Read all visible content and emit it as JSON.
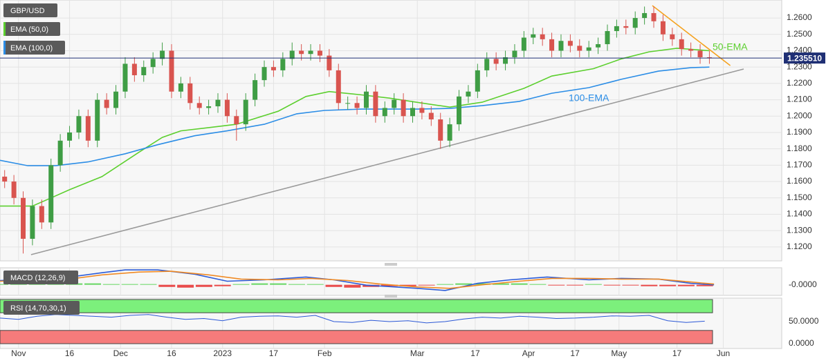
{
  "chart_data": [
    {
      "type": "candlestick",
      "symbol": "GBP/USD",
      "up_color": "#3f9d45",
      "down_color": "#d9544f",
      "x": [
        1,
        3,
        5,
        7,
        9,
        11,
        13,
        15,
        17,
        19,
        21,
        23,
        25,
        27,
        29,
        31,
        33,
        35,
        37,
        39,
        41,
        43,
        45,
        47,
        49,
        51,
        53,
        55,
        57,
        59,
        61,
        63,
        65,
        67,
        69,
        71,
        73,
        75,
        77,
        79,
        81,
        83,
        85,
        87,
        89,
        91,
        93,
        95,
        97,
        99,
        101,
        103,
        105,
        107,
        109,
        111,
        113,
        115,
        117,
        119,
        121,
        123,
        125,
        127,
        129,
        131,
        133,
        135,
        137,
        139,
        141,
        143,
        145,
        147,
        149,
        151,
        153
      ],
      "open": [
        1.163,
        1.16,
        1.15,
        1.125,
        1.145,
        1.135,
        1.17,
        1.185,
        1.19,
        1.2,
        1.185,
        1.21,
        1.205,
        1.215,
        1.232,
        1.225,
        1.23,
        1.235,
        1.24,
        1.215,
        1.22,
        1.208,
        1.205,
        1.206,
        1.21,
        1.2,
        1.195,
        1.21,
        1.222,
        1.23,
        1.228,
        1.235,
        1.24,
        1.238,
        1.24,
        1.237,
        1.228,
        1.208,
        1.208,
        1.205,
        1.215,
        1.2,
        1.205,
        1.21,
        1.2,
        1.205,
        1.202,
        1.198,
        1.185,
        1.195,
        1.212,
        1.215,
        1.228,
        1.235,
        1.232,
        1.236,
        1.24,
        1.248,
        1.25,
        1.247,
        1.24,
        1.246,
        1.243,
        1.24,
        1.242,
        1.244,
        1.252,
        1.255,
        1.254,
        1.26,
        1.263,
        1.258,
        1.25,
        1.247,
        1.241,
        1.24,
        1.236
      ],
      "high": [
        1.167,
        1.164,
        1.154,
        1.149,
        1.149,
        1.174,
        1.189,
        1.194,
        1.204,
        1.204,
        1.214,
        1.214,
        1.219,
        1.236,
        1.236,
        1.234,
        1.239,
        1.245,
        1.244,
        1.224,
        1.224,
        1.212,
        1.21,
        1.214,
        1.214,
        1.204,
        1.214,
        1.226,
        1.234,
        1.234,
        1.239,
        1.245,
        1.244,
        1.244,
        1.244,
        1.241,
        1.232,
        1.212,
        1.212,
        1.219,
        1.219,
        1.209,
        1.214,
        1.214,
        1.209,
        1.209,
        1.206,
        1.202,
        1.199,
        1.216,
        1.219,
        1.232,
        1.239,
        1.239,
        1.24,
        1.244,
        1.252,
        1.254,
        1.254,
        1.251,
        1.25,
        1.25,
        1.247,
        1.246,
        1.248,
        1.256,
        1.259,
        1.259,
        1.264,
        1.267,
        1.267,
        1.262,
        1.254,
        1.251,
        1.245,
        1.244,
        1.24
      ],
      "low": [
        1.156,
        1.146,
        1.116,
        1.121,
        1.131,
        1.131,
        1.166,
        1.181,
        1.186,
        1.181,
        1.181,
        1.201,
        1.201,
        1.211,
        1.221,
        1.221,
        1.226,
        1.231,
        1.211,
        1.211,
        1.204,
        1.201,
        1.201,
        1.202,
        1.196,
        1.185,
        1.191,
        1.206,
        1.218,
        1.224,
        1.224,
        1.231,
        1.234,
        1.234,
        1.233,
        1.224,
        1.204,
        1.204,
        1.201,
        1.201,
        1.196,
        1.196,
        1.201,
        1.196,
        1.196,
        1.198,
        1.194,
        1.18,
        1.181,
        1.191,
        1.208,
        1.211,
        1.224,
        1.228,
        1.228,
        1.232,
        1.236,
        1.244,
        1.243,
        1.236,
        1.236,
        1.239,
        1.236,
        1.236,
        1.238,
        1.24,
        1.248,
        1.25,
        1.25,
        1.256,
        1.254,
        1.246,
        1.243,
        1.237,
        1.236,
        1.232,
        1.232
      ],
      "close": [
        1.16,
        1.15,
        1.125,
        1.145,
        1.135,
        1.17,
        1.185,
        1.19,
        1.2,
        1.185,
        1.21,
        1.205,
        1.215,
        1.232,
        1.225,
        1.23,
        1.235,
        1.24,
        1.215,
        1.22,
        1.208,
        1.205,
        1.206,
        1.21,
        1.2,
        1.195,
        1.21,
        1.222,
        1.23,
        1.228,
        1.235,
        1.24,
        1.238,
        1.24,
        1.237,
        1.228,
        1.208,
        1.208,
        1.205,
        1.215,
        1.2,
        1.205,
        1.21,
        1.2,
        1.205,
        1.202,
        1.198,
        1.185,
        1.195,
        1.212,
        1.215,
        1.228,
        1.235,
        1.232,
        1.236,
        1.24,
        1.248,
        1.25,
        1.247,
        1.24,
        1.246,
        1.243,
        1.24,
        1.242,
        1.244,
        1.252,
        1.255,
        1.254,
        1.26,
        1.263,
        1.258,
        1.25,
        1.247,
        1.241,
        1.24,
        1.236,
        1.2355
      ],
      "last_value": 1.23551,
      "last_value_label": "1.235510",
      "last_color": "#1f2f74",
      "xlim": [
        0,
        168.6
      ],
      "xticks": [
        {
          "value": 4,
          "label": "Nov"
        },
        {
          "value": 15,
          "label": "16"
        },
        {
          "value": 26,
          "label": "Dec"
        },
        {
          "value": 37,
          "label": "16"
        },
        {
          "value": 48,
          "label": "2023"
        },
        {
          "value": 59,
          "label": "17"
        },
        {
          "value": 70,
          "label": "Feb"
        },
        {
          "value": 90,
          "label": "Mar"
        },
        {
          "value": 102.5,
          "label": "17"
        },
        {
          "value": 114,
          "label": "Apr"
        },
        {
          "value": 124,
          "label": "17"
        },
        {
          "value": 133.5,
          "label": "May"
        },
        {
          "value": 146,
          "label": "17"
        },
        {
          "value": 156,
          "label": "Jun"
        }
      ],
      "ylim": [
        1.1115,
        1.271
      ],
      "yticks": [
        {
          "value": 1.12,
          "label": "1.1200"
        },
        {
          "value": 1.13,
          "label": "1.1300"
        },
        {
          "value": 1.14,
          "label": "1.1400"
        },
        {
          "value": 1.15,
          "label": "1.1500"
        },
        {
          "value": 1.16,
          "label": "1.1600"
        },
        {
          "value": 1.17,
          "label": "1.1700"
        },
        {
          "value": 1.18,
          "label": "1.1800"
        },
        {
          "value": 1.19,
          "label": "1.1900"
        },
        {
          "value": 1.2,
          "label": "1.2000"
        },
        {
          "value": 1.21,
          "label": "1.2100"
        },
        {
          "value": 1.22,
          "label": "1.2200"
        },
        {
          "value": 1.23,
          "label": "1.2300"
        },
        {
          "value": 1.24,
          "label": "1.2400"
        },
        {
          "value": 1.25,
          "label": "1.2500"
        },
        {
          "value": 1.26,
          "label": "1.2600"
        }
      ],
      "grid": true,
      "series": [
        {
          "name": "EMA (50,0)",
          "annotation": "50-EMA",
          "color": "#5ccf2e",
          "x": [
            0,
            7,
            11,
            15,
            22,
            30,
            35,
            39,
            45,
            51,
            60,
            66,
            71,
            78,
            84,
            91,
            97,
            104,
            113,
            119,
            128,
            134,
            140,
            146,
            153
          ],
          "values": [
            1.145,
            1.145,
            1.15,
            1.155,
            1.163,
            1.178,
            1.187,
            1.191,
            1.193,
            1.195,
            1.203,
            1.212,
            1.215,
            1.213,
            1.211,
            1.208,
            1.2055,
            1.2085,
            1.217,
            1.2245,
            1.229,
            1.235,
            1.2393,
            1.2415,
            1.24
          ]
        },
        {
          "name": "EMA (100,0)",
          "annotation": "100-EMA",
          "color": "#2b8de6",
          "x": [
            0,
            6,
            12,
            19,
            27,
            34,
            42,
            49,
            57,
            64,
            70,
            78,
            90,
            97,
            104,
            112,
            119,
            127,
            134,
            142,
            149,
            153
          ],
          "values": [
            1.173,
            1.1697,
            1.1697,
            1.172,
            1.177,
            1.1825,
            1.188,
            1.191,
            1.195,
            1.2014,
            1.2035,
            1.2043,
            1.2043,
            1.2047,
            1.2064,
            1.209,
            1.214,
            1.2174,
            1.2225,
            1.2275,
            1.2296,
            1.23
          ]
        }
      ],
      "trendlines": [
        {
          "color": "#f5a21f",
          "x": [
            140.7,
            157.5
          ],
          "values": [
            1.2676,
            1.2309
          ]
        },
        {
          "color": "#9a9a9a",
          "x": [
            6.7,
            160.4
          ],
          "values": [
            1.1153,
            1.2288
          ]
        }
      ]
    },
    {
      "type": "macd",
      "name": "MACD (12,26,9)",
      "xlim": [
        0,
        168.6
      ],
      "ylim": [
        -0.012,
        0.024
      ],
      "yticks": [
        {
          "value": 0,
          "label": "-0.0000"
        }
      ],
      "histogram": {
        "up_color": "#4fd14a",
        "down_color": "#e62e2e",
        "x": [
          0,
          4,
          8,
          12,
          16,
          20,
          24,
          28,
          32,
          36,
          40,
          44,
          48,
          52,
          56,
          60,
          64,
          68,
          72,
          76,
          80,
          84,
          88,
          92,
          96,
          100,
          104,
          108,
          112,
          116,
          120,
          124,
          128,
          132,
          136,
          140,
          144,
          148,
          152
        ],
        "values": [
          0.001,
          0.002,
          0.003,
          0.003,
          0.002,
          0.002,
          0.001,
          0.001,
          0.001,
          -0.003,
          -0.004,
          -0.003,
          -0.002,
          0.001,
          0.002,
          0.002,
          0.001,
          0.001,
          -0.003,
          -0.004,
          -0.003,
          -0.002,
          -0.002,
          -0.001,
          0.001,
          0.002,
          0.002,
          0.002,
          0.002,
          0.001,
          -0.001,
          -0.001,
          0.001,
          -0.001,
          -0.001,
          -0.002,
          -0.002,
          -0.002,
          -0.002
        ]
      },
      "series": [
        {
          "color": "#2b5bd8",
          "x": [
            0,
            15,
            22,
            27,
            34,
            42,
            49,
            57,
            66,
            72,
            79,
            90,
            96,
            103,
            110,
            118,
            127,
            134,
            142,
            149,
            154
          ],
          "values": [
            0.006,
            0.011,
            0.017,
            0.021,
            0.021,
            0.015,
            0.005,
            0.007,
            0.011,
            0.007,
            -0.0005,
            -0.005,
            -0.008,
            0.002,
            0.007,
            0.011,
            0.007,
            0.009,
            0.008,
            0.002,
            0
          ]
        },
        {
          "color": "#f08a24",
          "x": [
            0,
            15,
            22,
            30,
            37,
            45,
            52,
            60,
            67,
            75,
            82,
            90,
            97,
            104,
            112,
            119,
            127,
            134,
            142,
            149,
            154
          ],
          "values": [
            0.005,
            0.008,
            0.014,
            0.018,
            0.019,
            0.014,
            0.008,
            0.007,
            0.009,
            0.006,
            0.001,
            -0.003,
            -0.005,
            0.0,
            0.005,
            0.009,
            0.009,
            0.008,
            0.008,
            0.004,
            0.001
          ]
        }
      ]
    },
    {
      "type": "rsi",
      "name": "RSI (14,70,30,1)",
      "xlim": [
        0,
        168.6
      ],
      "ylim": [
        0,
        100
      ],
      "yticks": [
        {
          "value": 50,
          "label": "50.0000"
        },
        {
          "value": 0,
          "label": "0.0000"
        }
      ],
      "overbought": 70,
      "oversold": 30,
      "overbought_color": "#7cf07c",
      "oversold_color": "#f57b7b",
      "series": [
        {
          "color": "#2a57d6",
          "x": [
            0,
            4,
            8,
            12,
            16,
            20,
            24,
            28,
            32,
            36,
            40,
            44,
            48,
            52,
            56,
            60,
            64,
            68,
            72,
            76,
            80,
            84,
            88,
            92,
            96,
            100,
            104,
            108,
            112,
            116,
            120,
            124,
            128,
            132,
            136,
            140,
            144,
            148,
            152
          ],
          "values": [
            58,
            55,
            62,
            66,
            64,
            62,
            60,
            64,
            66,
            60,
            55,
            57,
            52,
            60,
            62,
            63,
            60,
            64,
            50,
            48,
            53,
            50,
            52,
            47,
            50,
            56,
            60,
            58,
            62,
            60,
            57,
            58,
            60,
            63,
            62,
            64,
            52,
            48,
            51
          ]
        }
      ]
    }
  ]
}
